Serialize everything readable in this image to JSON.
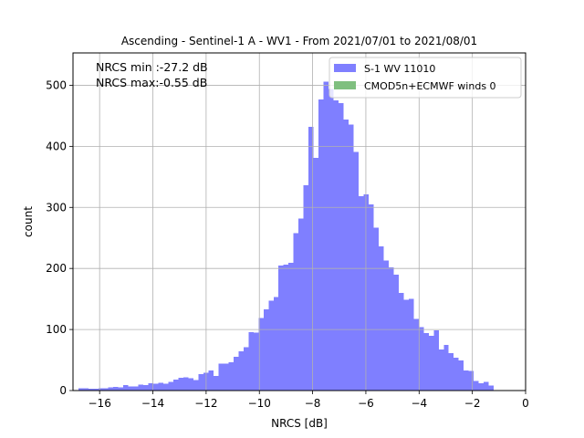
{
  "chart_data": {
    "type": "bar",
    "title": "Ascending - Sentinel-1 A - WV1 - From 2021/07/01 to 2021/08/01",
    "xlabel": "NRCS [dB]",
    "ylabel": "count",
    "xlim": [
      -17.0,
      0.0
    ],
    "ylim": [
      0,
      553
    ],
    "xticks": [
      -16,
      -14,
      -12,
      -10,
      -8,
      -6,
      -4,
      -2,
      0
    ],
    "xtick_labels": [
      "−16",
      "−14",
      "−12",
      "−10",
      "−8",
      "−6",
      "−4",
      "−2",
      "0"
    ],
    "yticks": [
      0,
      100,
      200,
      300,
      400,
      500
    ],
    "ytick_labels": [
      "0",
      "100",
      "200",
      "300",
      "400",
      "500"
    ],
    "grid": true,
    "annotations": [
      "NRCS min :-27.2 dB",
      "NRCS max:-0.55 dB"
    ],
    "bin_start": -16.8,
    "bin_width": 0.188,
    "series": [
      {
        "name": "S-1 WV 11010",
        "color": "#7f7fff",
        "values": [
          4,
          4,
          3,
          3,
          4,
          4,
          5,
          6,
          5,
          9,
          7,
          7,
          10,
          9,
          12,
          11,
          13,
          11,
          14,
          18,
          21,
          22,
          20,
          17,
          27,
          29,
          33,
          24,
          44,
          44,
          46,
          55,
          64,
          71,
          96,
          95,
          119,
          133,
          147,
          153,
          205,
          206,
          209,
          258,
          282,
          336,
          432,
          381,
          477,
          506,
          494,
          475,
          471,
          444,
          436,
          391,
          318,
          321,
          305,
          267,
          236,
          213,
          202,
          190,
          160,
          149,
          150,
          117,
          104,
          94,
          90,
          99,
          67,
          75,
          61,
          54,
          49,
          33,
          32,
          16,
          12,
          14,
          8
        ]
      },
      {
        "name": "CMOD5n+ECMWF winds 0",
        "color": "#7fbf7f",
        "values": []
      }
    ]
  }
}
